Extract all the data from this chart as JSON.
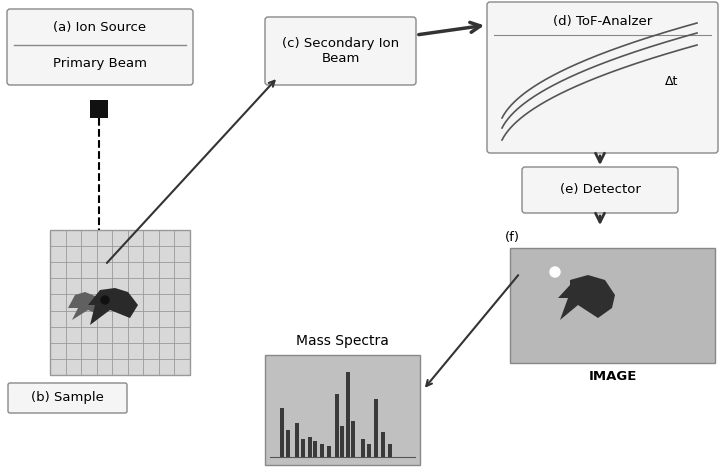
{
  "bg_color": "#ffffff",
  "box_color": "#f5f5f5",
  "box_edge": "#888888",
  "arrow_color": "#333333",
  "grid_color": "#aaaaaa",
  "sample_bg": "#d8d8d8",
  "image_bg": "#b8b8b8",
  "spectra_bg": "#c0c0c0",
  "tof_bg": "#f0f0f0",
  "dark_shape": "#3a3a3a",
  "mid_shape": "#606060",
  "labels": {
    "a": "(a) Ion Source",
    "a_sub": "Primary Beam",
    "b": "(b) Sample",
    "c": "(c) Secondary Ion\nBeam",
    "d": "(d) ToF-Analzer",
    "dt": "Δt",
    "e": "(e) Detector",
    "f": "(f)",
    "image": "IMAGE",
    "mass": "Mass Spectra"
  }
}
